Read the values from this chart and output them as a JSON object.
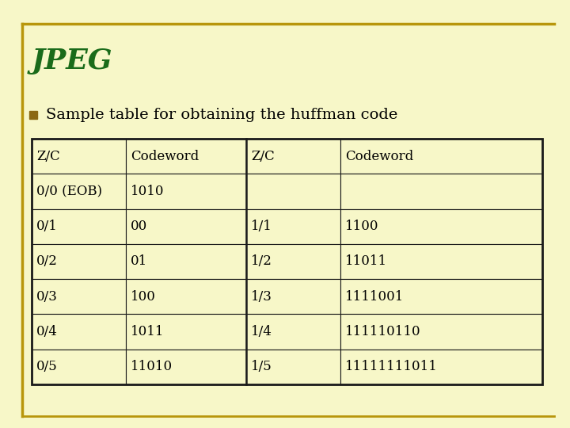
{
  "title": "JPEG",
  "title_color": "#1a6b1a",
  "background_color": "#f7f7c8",
  "bullet_text": "Sample table for obtaining the huffman code",
  "bullet_color": "#8b6914",
  "table_headers": [
    "Z/C",
    "Codeword",
    "Z/C",
    "Codeword"
  ],
  "table_rows": [
    [
      "0/0 (EOB)",
      "1010",
      "",
      ""
    ],
    [
      "0/1",
      "00",
      "1/1",
      "1100"
    ],
    [
      "0/2",
      "01",
      "1/2",
      "11011"
    ],
    [
      "0/3",
      "100",
      "1/3",
      "1111001"
    ],
    [
      "0/4",
      "1011",
      "1/4",
      "111110110"
    ],
    [
      "0/5",
      "11010",
      "1/5",
      "11111111011"
    ]
  ],
  "table_text_color": "#000000",
  "border_color": "#1a1a1a",
  "gold_line_color": "#b8960c",
  "font_size_table": 12,
  "font_size_title": 26,
  "font_size_bullet": 14
}
